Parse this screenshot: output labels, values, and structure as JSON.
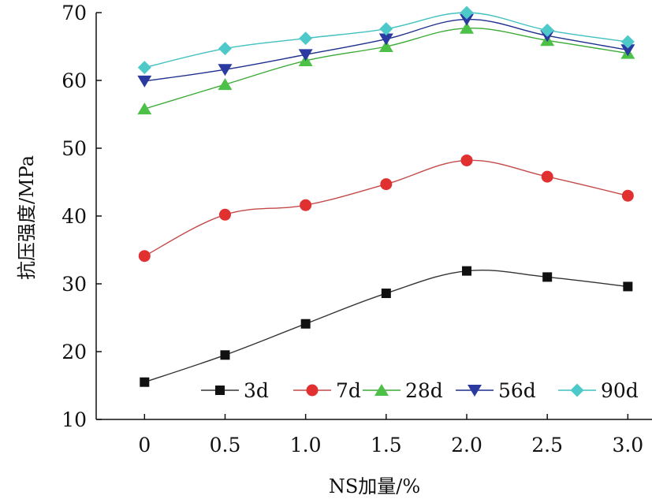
{
  "chart_data": {
    "type": "line",
    "xlabel": "NS加量/%",
    "ylabel": "抗压强度/MPa",
    "x": [
      0,
      0.5,
      1.0,
      1.5,
      2.0,
      2.5,
      3.0
    ],
    "x_tick_labels": [
      "0",
      "0.5",
      "1.0",
      "1.5",
      "2.0",
      "2.5",
      "3.0"
    ],
    "y_ticks": [
      10,
      20,
      30,
      40,
      50,
      60,
      70
    ],
    "xlim": [
      -0.3,
      3.15
    ],
    "ylim": [
      10,
      70
    ],
    "grid": false,
    "legend_position": "bottom-right",
    "series": [
      {
        "name": "3d",
        "color": "#333333",
        "line_color": "#333333",
        "marker": "square",
        "marker_color": "#111111",
        "values": [
          15.5,
          19.5,
          24.1,
          28.6,
          31.9,
          31.0,
          29.6
        ]
      },
      {
        "name": "7d",
        "color": "#c0392b",
        "line_color": "#c44a4a",
        "marker": "circle",
        "marker_color": "#e03030",
        "values": [
          34.1,
          40.2,
          41.6,
          44.7,
          48.2,
          45.8,
          43.0
        ]
      },
      {
        "name": "28d",
        "color": "#3aaa35",
        "line_color": "#3aaa35",
        "marker": "triangle-up",
        "marker_color": "#4cc047",
        "values": [
          55.8,
          59.4,
          62.9,
          65.0,
          67.7,
          65.9,
          64.0
        ]
      },
      {
        "name": "56d",
        "color": "#1f2f8c",
        "line_color": "#1f2f8c",
        "marker": "triangle-down",
        "marker_color": "#2a3aa0",
        "values": [
          59.9,
          61.6,
          63.8,
          66.1,
          69.0,
          66.6,
          64.5
        ]
      },
      {
        "name": "90d",
        "color": "#40c0c0",
        "line_color": "#40c0c0",
        "marker": "diamond",
        "marker_color": "#4ec9c9",
        "values": [
          61.9,
          64.7,
          66.2,
          67.6,
          70.0,
          67.4,
          65.7
        ]
      }
    ]
  }
}
